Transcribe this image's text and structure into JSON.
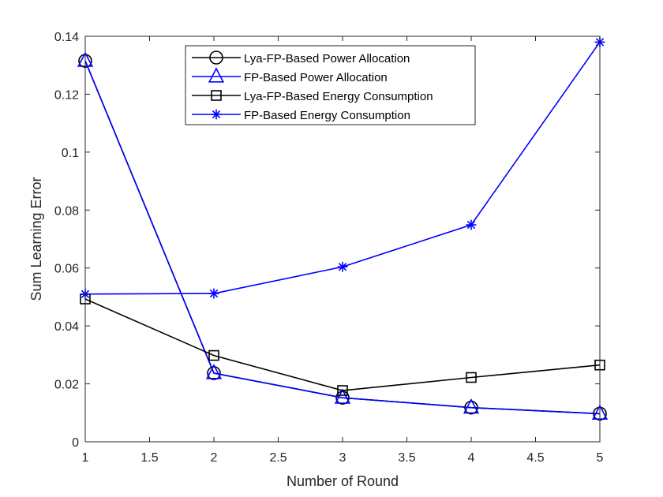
{
  "chart_data": {
    "type": "line",
    "title": "",
    "xlabel": "Number of Round",
    "ylabel": "Sum Learning Error",
    "xlim": [
      1,
      5
    ],
    "ylim": [
      0,
      0.14
    ],
    "xticks": [
      "1",
      "1.5",
      "2",
      "2.5",
      "3",
      "3.5",
      "4",
      "4.5",
      "5"
    ],
    "yticks": [
      "0",
      "0.02",
      "0.04",
      "0.06",
      "0.08",
      "0.1",
      "0.12",
      "0.14"
    ],
    "grid": false,
    "legend_position": "top-center",
    "x": [
      1,
      2,
      3,
      4,
      5
    ],
    "series": [
      {
        "name": "Lya-FP-Based Power Allocation",
        "color": "#000000",
        "marker": "circle",
        "values": [
          0.1315,
          0.0237,
          0.0152,
          0.0118,
          0.0097
        ]
      },
      {
        "name": "FP-Based Power Allocation",
        "color": "#0000ff",
        "marker": "triangle",
        "values": [
          0.1315,
          0.0237,
          0.0152,
          0.0118,
          0.0097
        ]
      },
      {
        "name": "Lya-FP-Based Energy Consumption",
        "color": "#000000",
        "marker": "square",
        "values": [
          0.0493,
          0.0298,
          0.0177,
          0.0222,
          0.0265
        ]
      },
      {
        "name": "FP-Based Energy Consumption",
        "color": "#0000ff",
        "marker": "asterisk",
        "values": [
          0.051,
          0.0512,
          0.0604,
          0.0749,
          0.138
        ]
      }
    ]
  }
}
